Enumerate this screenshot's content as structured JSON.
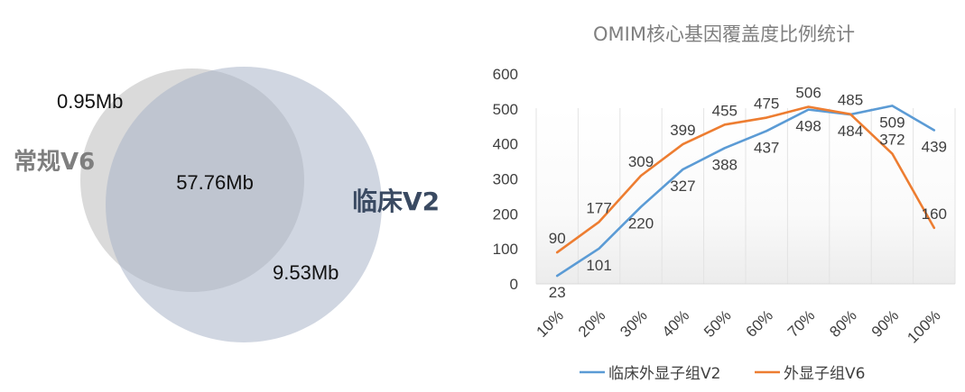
{
  "venn": {
    "left_set_label": "常规V6",
    "right_set_label": "临床V2",
    "left_only": "0.95Mb",
    "overlap": "57.76Mb",
    "right_only": "9.53Mb",
    "colors": {
      "left": "#d9d9d9",
      "right": "#b4bed0",
      "overlap": "#c0c4ce",
      "right_label": "#3a4a62",
      "left_label": "#808080"
    }
  },
  "chart_data": {
    "type": "line",
    "title": "OMIM核心基因覆盖度比例统计",
    "categories": [
      "10%",
      "20%",
      "30%",
      "40%",
      "50%",
      "60%",
      "70%",
      "80%",
      "90%",
      "100%"
    ],
    "series": [
      {
        "name": "临床外显子组V2",
        "color": "#5b9bd5",
        "values": [
          23,
          101,
          220,
          327,
          388,
          437,
          498,
          484,
          509,
          439
        ]
      },
      {
        "name": "外显子组V6",
        "color": "#ed7d31",
        "values": [
          90,
          177,
          309,
          399,
          455,
          475,
          506,
          485,
          372,
          160
        ]
      }
    ],
    "y_ticks": [
      0,
      100,
      200,
      300,
      400,
      500,
      600
    ],
    "ylim": [
      0,
      600
    ],
    "grid": "vertical",
    "legend": "bottom"
  }
}
